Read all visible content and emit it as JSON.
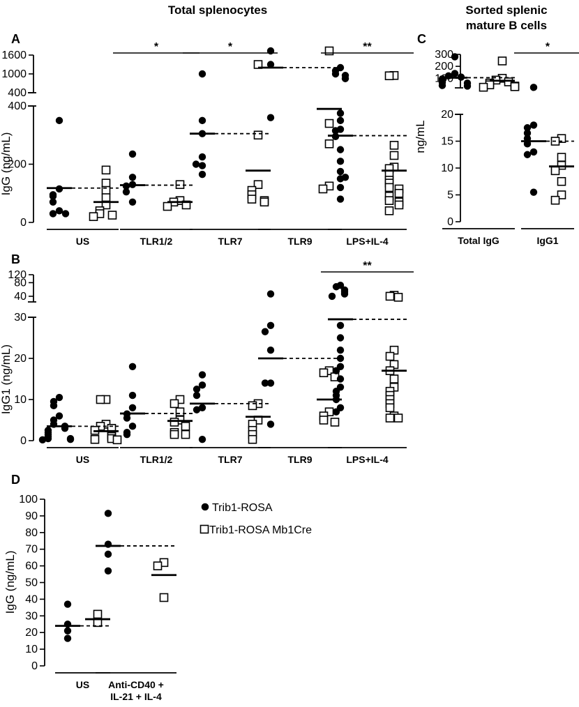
{
  "headers": {
    "total": "Total splenocytes",
    "sorted_line1": "Sorted splenic",
    "sorted_line2": "mature B cells"
  },
  "legend": {
    "filled": "Trib1-ROSA",
    "open": "Trib1-ROSA Mb1Cre"
  },
  "chart_data": [
    {
      "panel": "A",
      "type": "scatter",
      "ylabel": "IgG (ng/mL)",
      "y_lower_ticks": [
        "0",
        "200",
        "400"
      ],
      "y_upper_ticks": [
        "400",
        "1000",
        "1600"
      ],
      "ylim_lower": [
        0,
        400
      ],
      "ylim_upper": [
        400,
        1600
      ],
      "groups": [
        {
          "label": "US",
          "sig": "",
          "rosa": [
            350,
            115,
            95,
            90,
            70,
            40,
            30,
            30
          ],
          "rosa_mean": 118,
          "mb1": [
            180,
            135,
            110,
            85,
            60,
            40,
            30,
            25,
            20
          ],
          "mb1_mean": 70
        },
        {
          "label": "TLR1/2",
          "sig": "*",
          "rosa": [
            235,
            155,
            130,
            125,
            105,
            70
          ],
          "rosa_mean": 128,
          "mb1": [
            130,
            75,
            70,
            60,
            55
          ],
          "mb1_mean": 70
        },
        {
          "label": "TLR7",
          "sig": "*",
          "rosa": [
            1000,
            350,
            305,
            225,
            195,
            200,
            165
          ],
          "rosa_mean": 305,
          "mb1": [
            1300,
            300,
            130,
            110,
            95,
            80,
            75,
            70
          ],
          "mb1_mean": 178
        },
        {
          "label": "TLR9",
          "sig": "",
          "rosa": [
            1800,
            1300,
            360
          ],
          "rosa_mean": 1200,
          "mb1": [
            2000,
            340,
            270,
            125,
            115
          ],
          "mb1_mean": 390
        },
        {
          "label": "LPS+IL-4",
          "sig": "**",
          "rosa": [
            1200,
            1100,
            1000,
            950,
            850,
            375,
            350,
            320,
            315,
            295,
            250,
            210,
            175,
            150,
            155,
            120,
            80
          ],
          "rosa_mean": 298,
          "mb1": [
            950,
            940,
            265,
            230,
            190,
            185,
            165,
            145,
            135,
            120,
            115,
            100,
            90,
            75,
            70,
            60,
            40
          ],
          "mb1_mean": 178
        }
      ]
    },
    {
      "panel": "B",
      "type": "scatter",
      "ylabel": "IgG1 (ng/mL)",
      "y_lower_ticks": [
        "0",
        "10",
        "20",
        "30"
      ],
      "y_upper_ticks": [
        "40",
        "80",
        "120"
      ],
      "ylim_lower": [
        0,
        30
      ],
      "ylim_upper": [
        30,
        120
      ],
      "groups": [
        {
          "label": "US",
          "sig": "",
          "rosa": [
            10.5,
            9.5,
            8.5,
            6,
            5,
            4,
            3.5,
            3,
            2.5,
            2,
            1.5,
            1,
            0.5,
            0.5,
            0.3,
            0.2
          ],
          "rosa_mean": 3.5,
          "mb1": [
            10,
            10,
            4,
            3.5,
            3,
            2.5,
            1.5,
            1,
            0.5,
            0.3,
            0.2
          ],
          "mb1_mean": 2.3
        },
        {
          "label": "TLR1/2",
          "sig": "",
          "rosa": [
            18,
            11,
            8,
            6.5,
            5.5,
            3.5,
            2,
            1.5
          ],
          "rosa_mean": 6.6,
          "mb1": [
            10,
            9,
            7,
            5,
            4.5,
            3.5,
            2,
            1.5,
            1.5
          ],
          "mb1_mean": 4.8
        },
        {
          "label": "TLR7",
          "sig": "",
          "rosa": [
            16,
            13.5,
            12.5,
            11,
            8,
            7.5,
            0.3
          ],
          "rosa_mean": 9,
          "mb1": [
            9,
            8.5,
            5,
            4,
            2.5,
            1.5,
            0.3
          ],
          "mb1_mean": 5.8
        },
        {
          "label": "TLR9",
          "sig": "",
          "rosa": [
            45,
            28,
            26.5,
            22,
            14,
            14,
            4
          ],
          "rosa_mean": 20,
          "mb1": [
            17,
            16.5,
            15.5,
            7,
            6,
            5,
            4.5
          ],
          "mb1_mean": 10
        },
        {
          "label": "LPS+IL-4",
          "sig": "**",
          "rosa": [
            70,
            65,
            55,
            50,
            45,
            40,
            28,
            25,
            22,
            20,
            18,
            17,
            15,
            13,
            12,
            11,
            10,
            8,
            7
          ],
          "rosa_mean": 29.5,
          "mb1": [
            42,
            40,
            38,
            22,
            20.5,
            18.5,
            17,
            15,
            13,
            12,
            11,
            10,
            9,
            8,
            6,
            5.5,
            5.5
          ],
          "mb1_mean": 17
        }
      ]
    },
    {
      "panel": "C",
      "type": "scatter",
      "ylabel": "ng/mL",
      "y_lower_ticks": [
        "0",
        "5",
        "10",
        "15",
        "20"
      ],
      "y_upper_ticks": [
        "100",
        "200",
        "300"
      ],
      "ylim_lower": [
        0,
        20
      ],
      "ylim_upper": [
        20,
        300
      ],
      "groups": [
        {
          "label": "Total IgG",
          "sig": "",
          "rosa": [
            280,
            140,
            120,
            110,
            95,
            80,
            65,
            60,
            40,
            35
          ],
          "rosa_mean": 105,
          "mb1": [
            245,
            100,
            85,
            70,
            60,
            45,
            35,
            30,
            25
          ],
          "mb1_mean": 80
        },
        {
          "label": "IgG1",
          "sig": "*",
          "rosa": [
            24,
            18,
            17.5,
            16.5,
            15.5,
            14.5,
            13,
            12.5,
            5.5
          ],
          "rosa_mean": 15,
          "mb1": [
            15.5,
            15,
            12,
            10.5,
            9.5,
            7.5,
            5,
            4
          ],
          "mb1_mean": 10.3
        }
      ]
    },
    {
      "panel": "D",
      "type": "scatter",
      "ylabel": "IgG (ng/mL)",
      "y_ticks": [
        "0",
        "10",
        "20",
        "30",
        "40",
        "50",
        "60",
        "70",
        "80",
        "90",
        "100"
      ],
      "ylim": [
        0,
        100
      ],
      "groups": [
        {
          "label_lines": [
            "US"
          ],
          "sig": "",
          "rosa": [
            37,
            25,
            21,
            16.5
          ],
          "rosa_mean": 24,
          "mb1": [
            31,
            26
          ],
          "mb1_mean": 28
        },
        {
          "label_lines": [
            "Anti-CD40 +",
            "IL-21 + IL-4"
          ],
          "sig": "",
          "rosa": [
            91.5,
            73,
            67,
            57
          ],
          "rosa_mean": 72,
          "mb1": [
            62,
            60,
            41
          ],
          "mb1_mean": 54.5
        }
      ]
    }
  ]
}
